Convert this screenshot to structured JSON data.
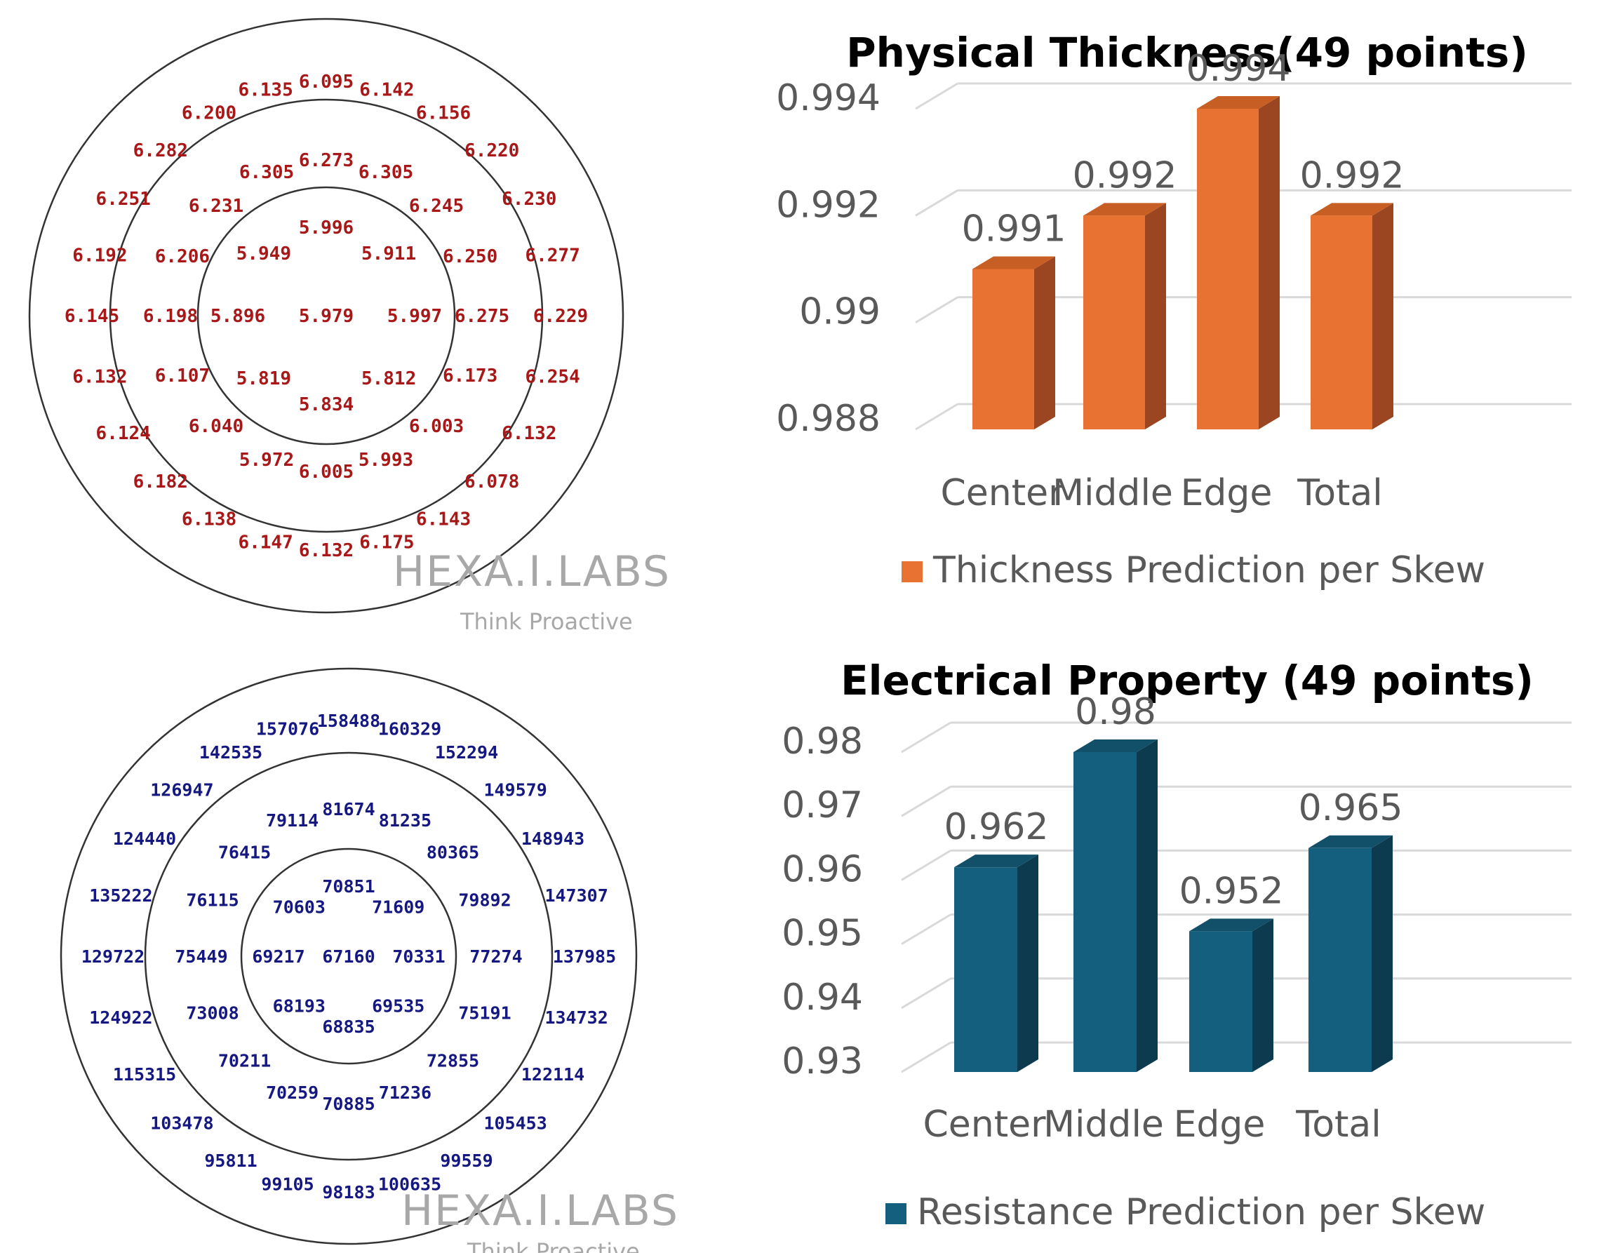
{
  "wafer_maps": [
    {
      "color": "#a81818",
      "watermark": {
        "logo": "HEXA.I.LABS",
        "tagline": "Think Proactive"
      },
      "center": "5.979",
      "rings": [
        [
          "5.996",
          "5.911",
          "5.997",
          "5.812",
          "5.834",
          "5.819",
          "5.896",
          "5.949"
        ],
        [
          "6.273",
          "6.305",
          "6.245",
          "6.250",
          "6.275",
          "6.173",
          "6.003",
          "5.993",
          "6.005",
          "5.972",
          "6.040",
          "6.107",
          "6.198",
          "6.206",
          "6.231",
          "6.305"
        ],
        [
          "6.095",
          "6.142",
          "6.156",
          "6.220",
          "6.230",
          "6.277",
          "6.229",
          "6.254",
          "6.132",
          "6.078",
          "6.143",
          "6.175",
          "6.132",
          "6.147",
          "6.138",
          "6.182",
          "6.124",
          "6.132",
          "6.145",
          "6.192",
          "6.251",
          "6.282",
          "6.200",
          "6.135"
        ]
      ]
    },
    {
      "color": "#141880",
      "watermark": {
        "logo": "HEXA.I.LABS",
        "tagline": "Think Proactive"
      },
      "center": "67160",
      "rings": [
        [
          "70851",
          "71609",
          "70331",
          "69535",
          "68835",
          "68193",
          "69217",
          "70603"
        ],
        [
          "81674",
          "81235",
          "80365",
          "79892",
          "77274",
          "75191",
          "72855",
          "71236",
          "70885",
          "70259",
          "70211",
          "73008",
          "75449",
          "76115",
          "76415",
          "79114"
        ],
        [
          "158488",
          "160329",
          "152294",
          "149579",
          "148943",
          "147307",
          "137985",
          "134732",
          "122114",
          "105453",
          "99559",
          "100635",
          "98183",
          "99105",
          "95811",
          "103478",
          "115315",
          "124922",
          "129722",
          "135222",
          "124440",
          "126947",
          "142535",
          "157076"
        ]
      ]
    }
  ],
  "chart_data": [
    {
      "type": "bar",
      "title": "Physical Thickness(49 points)",
      "categories": [
        "Center",
        "Middle",
        "Edge",
        "Total"
      ],
      "series": [
        {
          "name": "Thickness Prediction per Skew",
          "values": [
            0.991,
            0.992,
            0.994,
            0.992
          ],
          "labels": [
            "0.991",
            "0.992",
            "0.994",
            "0.992"
          ]
        }
      ],
      "y_ticks": [
        "0.988",
        "0.99",
        "0.992",
        "0.994"
      ],
      "ylim": [
        0.988,
        0.994
      ],
      "grid": true,
      "legend": "bottom",
      "colors": {
        "front": "#e87231",
        "side": "#9b4620",
        "top": "#c75f24"
      }
    },
    {
      "type": "bar",
      "title": "Electrical Property (49 points)",
      "categories": [
        "Center",
        "Middle",
        "Edge",
        "Total"
      ],
      "series": [
        {
          "name": "Resistance Prediction per Skew",
          "values": [
            0.962,
            0.98,
            0.952,
            0.965
          ],
          "labels": [
            "0.962",
            "0.98",
            "0.952",
            "0.965"
          ]
        }
      ],
      "y_ticks": [
        "0.93",
        "0.94",
        "0.95",
        "0.96",
        "0.97",
        "0.98"
      ],
      "ylim": [
        0.93,
        0.98
      ],
      "grid": true,
      "legend": "bottom",
      "colors": {
        "front": "#155f7e",
        "side": "#0c3b50",
        "top": "#124f69"
      }
    }
  ]
}
